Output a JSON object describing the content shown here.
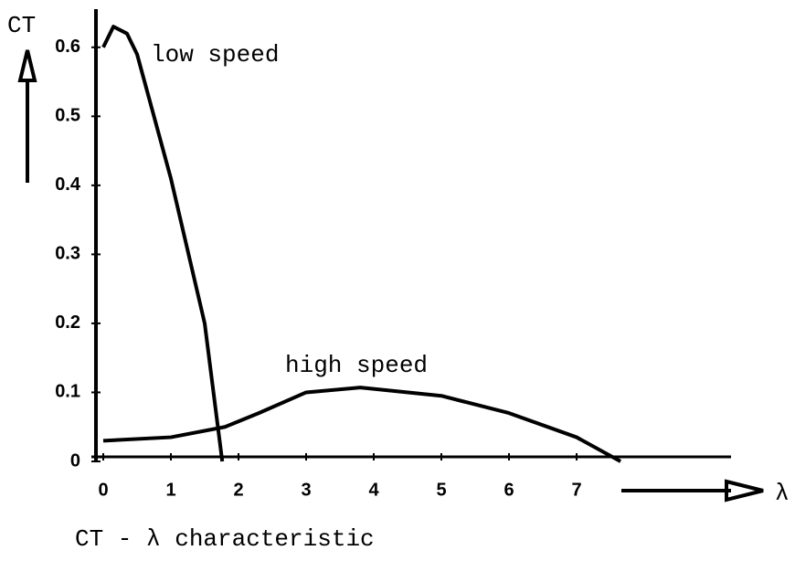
{
  "chart_data": {
    "type": "line",
    "title": "CT - λ characteristic",
    "y_label": "CT",
    "x_label": "λ",
    "annotations": [
      "low speed",
      "high speed"
    ],
    "xlim": [
      0,
      10
    ],
    "ylim": [
      0,
      0.65
    ],
    "xticks": [
      0,
      1,
      2,
      3,
      4,
      5,
      6,
      7
    ],
    "yticks": [
      0,
      0.1,
      0.2,
      0.3,
      0.4,
      0.5,
      0.6
    ],
    "series": [
      {
        "color": "#000000",
        "x": [
          0,
          0.15,
          0.35,
          0.5,
          1.0,
          1.5,
          1.76
        ],
        "values": [
          0.6,
          0.63,
          0.62,
          0.59,
          0.41,
          0.2,
          0
        ]
      },
      {
        "color": "#000000",
        "x": [
          0,
          1,
          1.8,
          2.3,
          3,
          3.8,
          5,
          6,
          7,
          7.65
        ],
        "values": [
          0.03,
          0.035,
          0.05,
          0.07,
          0.1,
          0.107,
          0.095,
          0.07,
          0.035,
          0
        ]
      }
    ]
  }
}
